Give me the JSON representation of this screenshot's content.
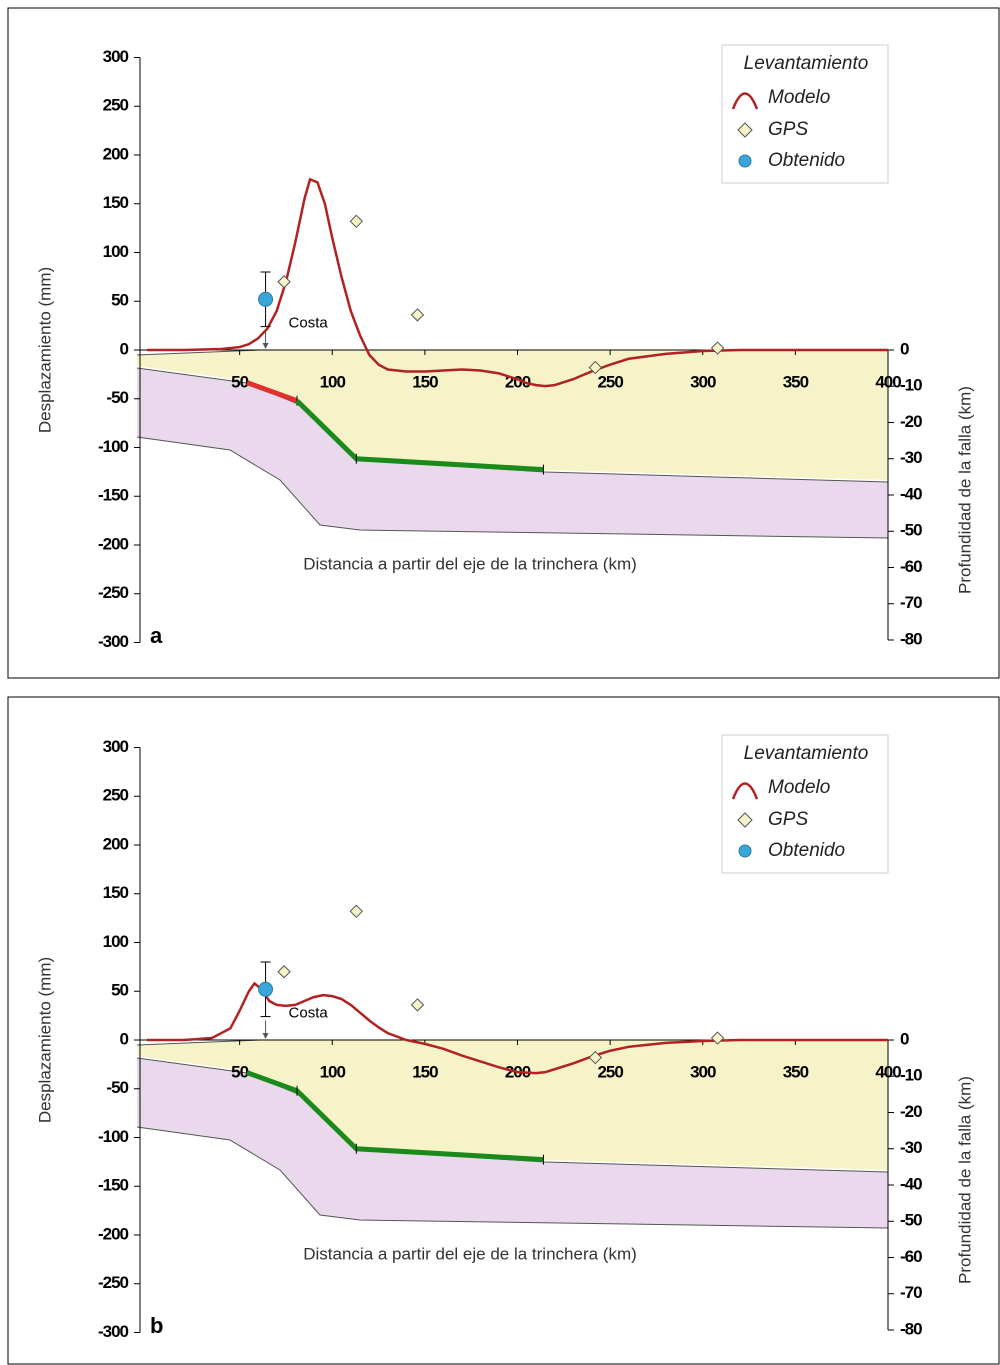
{
  "chart_data": [
    {
      "type": "line",
      "label": "a",
      "ylabel": "Desplazamiento (mm)",
      "y2label": "Profundidad de la falla (km)",
      "xlabel": "Distancia a partir del eje de la trinchera (km)",
      "annotation": "Costa",
      "legend_title": "Levantamiento",
      "xlim": [
        0,
        400
      ],
      "xticks": [
        50,
        100,
        150,
        200,
        250,
        300,
        350,
        400
      ],
      "ylim": [
        -300,
        300
      ],
      "yticks": [
        300,
        250,
        200,
        150,
        100,
        50,
        0,
        -50,
        -100,
        -150,
        -200,
        -250,
        -300
      ],
      "y2lim": [
        -80,
        0
      ],
      "y2ticks": [
        0,
        -10,
        -20,
        -30,
        -40,
        -50,
        -60,
        -70,
        -80
      ],
      "series": [
        {
          "name": "Modelo",
          "color": "#b22222",
          "x": [
            0,
            20,
            40,
            50,
            55,
            60,
            65,
            70,
            75,
            80,
            85,
            88,
            92,
            96,
            100,
            105,
            110,
            115,
            120,
            125,
            130,
            140,
            150,
            160,
            170,
            180,
            190,
            200,
            205,
            210,
            215,
            220,
            230,
            240,
            250,
            260,
            280,
            300,
            320,
            340,
            360,
            380,
            400
          ],
          "values": [
            0,
            0,
            1,
            3,
            6,
            12,
            22,
            40,
            70,
            110,
            155,
            175,
            172,
            150,
            115,
            75,
            40,
            15,
            -5,
            -15,
            -20,
            -22,
            -22,
            -21,
            -20,
            -21,
            -24,
            -30,
            -34,
            -36,
            -37,
            -36,
            -30,
            -22,
            -15,
            -9,
            -4,
            -1,
            0,
            0,
            0,
            0,
            0
          ]
        },
        {
          "name": "GPS",
          "color": "#f7f3c8",
          "x": [
            74,
            113,
            146,
            242,
            308
          ],
          "values": [
            70,
            132,
            36,
            -18,
            2
          ]
        },
        {
          "name": "Obtenido",
          "color": "#3aa6d8",
          "x": [
            64
          ],
          "values": [
            52
          ],
          "errors": [
            28
          ]
        }
      ],
      "fault": [
        {
          "color": "#e03030",
          "axis": "y2",
          "x": [
            54,
            81
          ],
          "values": [
            -9,
            -14
          ]
        },
        {
          "color": "#1a8a1a",
          "axis": "y2",
          "x": [
            81,
            113,
            214
          ],
          "values": [
            -14,
            -30,
            -33
          ]
        }
      ]
    },
    {
      "type": "line",
      "label": "b",
      "ylabel": "Desplazamiento (mm)",
      "y2label": "Profundidad de la falla (km)",
      "xlabel": "Distancia a partir del eje de la trinchera (km)",
      "annotation": "Costa",
      "legend_title": "Levantamiento",
      "xlim": [
        0,
        400
      ],
      "xticks": [
        50,
        100,
        150,
        200,
        250,
        300,
        350,
        400
      ],
      "ylim": [
        -300,
        300
      ],
      "yticks": [
        300,
        250,
        200,
        150,
        100,
        50,
        0,
        -50,
        -100,
        -150,
        -200,
        -250,
        -300
      ],
      "y2lim": [
        -80,
        0
      ],
      "y2ticks": [
        0,
        -10,
        -20,
        -30,
        -40,
        -50,
        -60,
        -70,
        -80
      ],
      "series": [
        {
          "name": "Modelo",
          "color": "#b22222",
          "x": [
            0,
            20,
            35,
            45,
            50,
            55,
            58,
            62,
            66,
            70,
            75,
            80,
            85,
            90,
            95,
            100,
            105,
            110,
            115,
            120,
            125,
            130,
            140,
            150,
            160,
            170,
            180,
            190,
            200,
            210,
            215,
            220,
            230,
            240,
            250,
            260,
            280,
            300,
            320,
            340,
            360,
            380,
            400
          ],
          "values": [
            0,
            0,
            2,
            12,
            30,
            50,
            58,
            52,
            40,
            36,
            35,
            36,
            40,
            44,
            46,
            45,
            42,
            36,
            28,
            20,
            13,
            7,
            0,
            -4,
            -9,
            -16,
            -22,
            -28,
            -33,
            -34,
            -33,
            -30,
            -24,
            -17,
            -11,
            -7,
            -3,
            -1,
            0,
            0,
            0,
            0,
            0
          ]
        },
        {
          "name": "GPS",
          "color": "#f7f3c8",
          "x": [
            74,
            113,
            146,
            242,
            308
          ],
          "values": [
            70,
            132,
            36,
            -18,
            2
          ]
        },
        {
          "name": "Obtenido",
          "color": "#3aa6d8",
          "x": [
            64
          ],
          "values": [
            52
          ],
          "errors": [
            28
          ]
        }
      ],
      "fault": [
        {
          "color": "#1a8a1a",
          "axis": "y2",
          "x": [
            54,
            81,
            113,
            214
          ],
          "values": [
            -9,
            -14,
            -30,
            -33
          ]
        }
      ]
    }
  ]
}
